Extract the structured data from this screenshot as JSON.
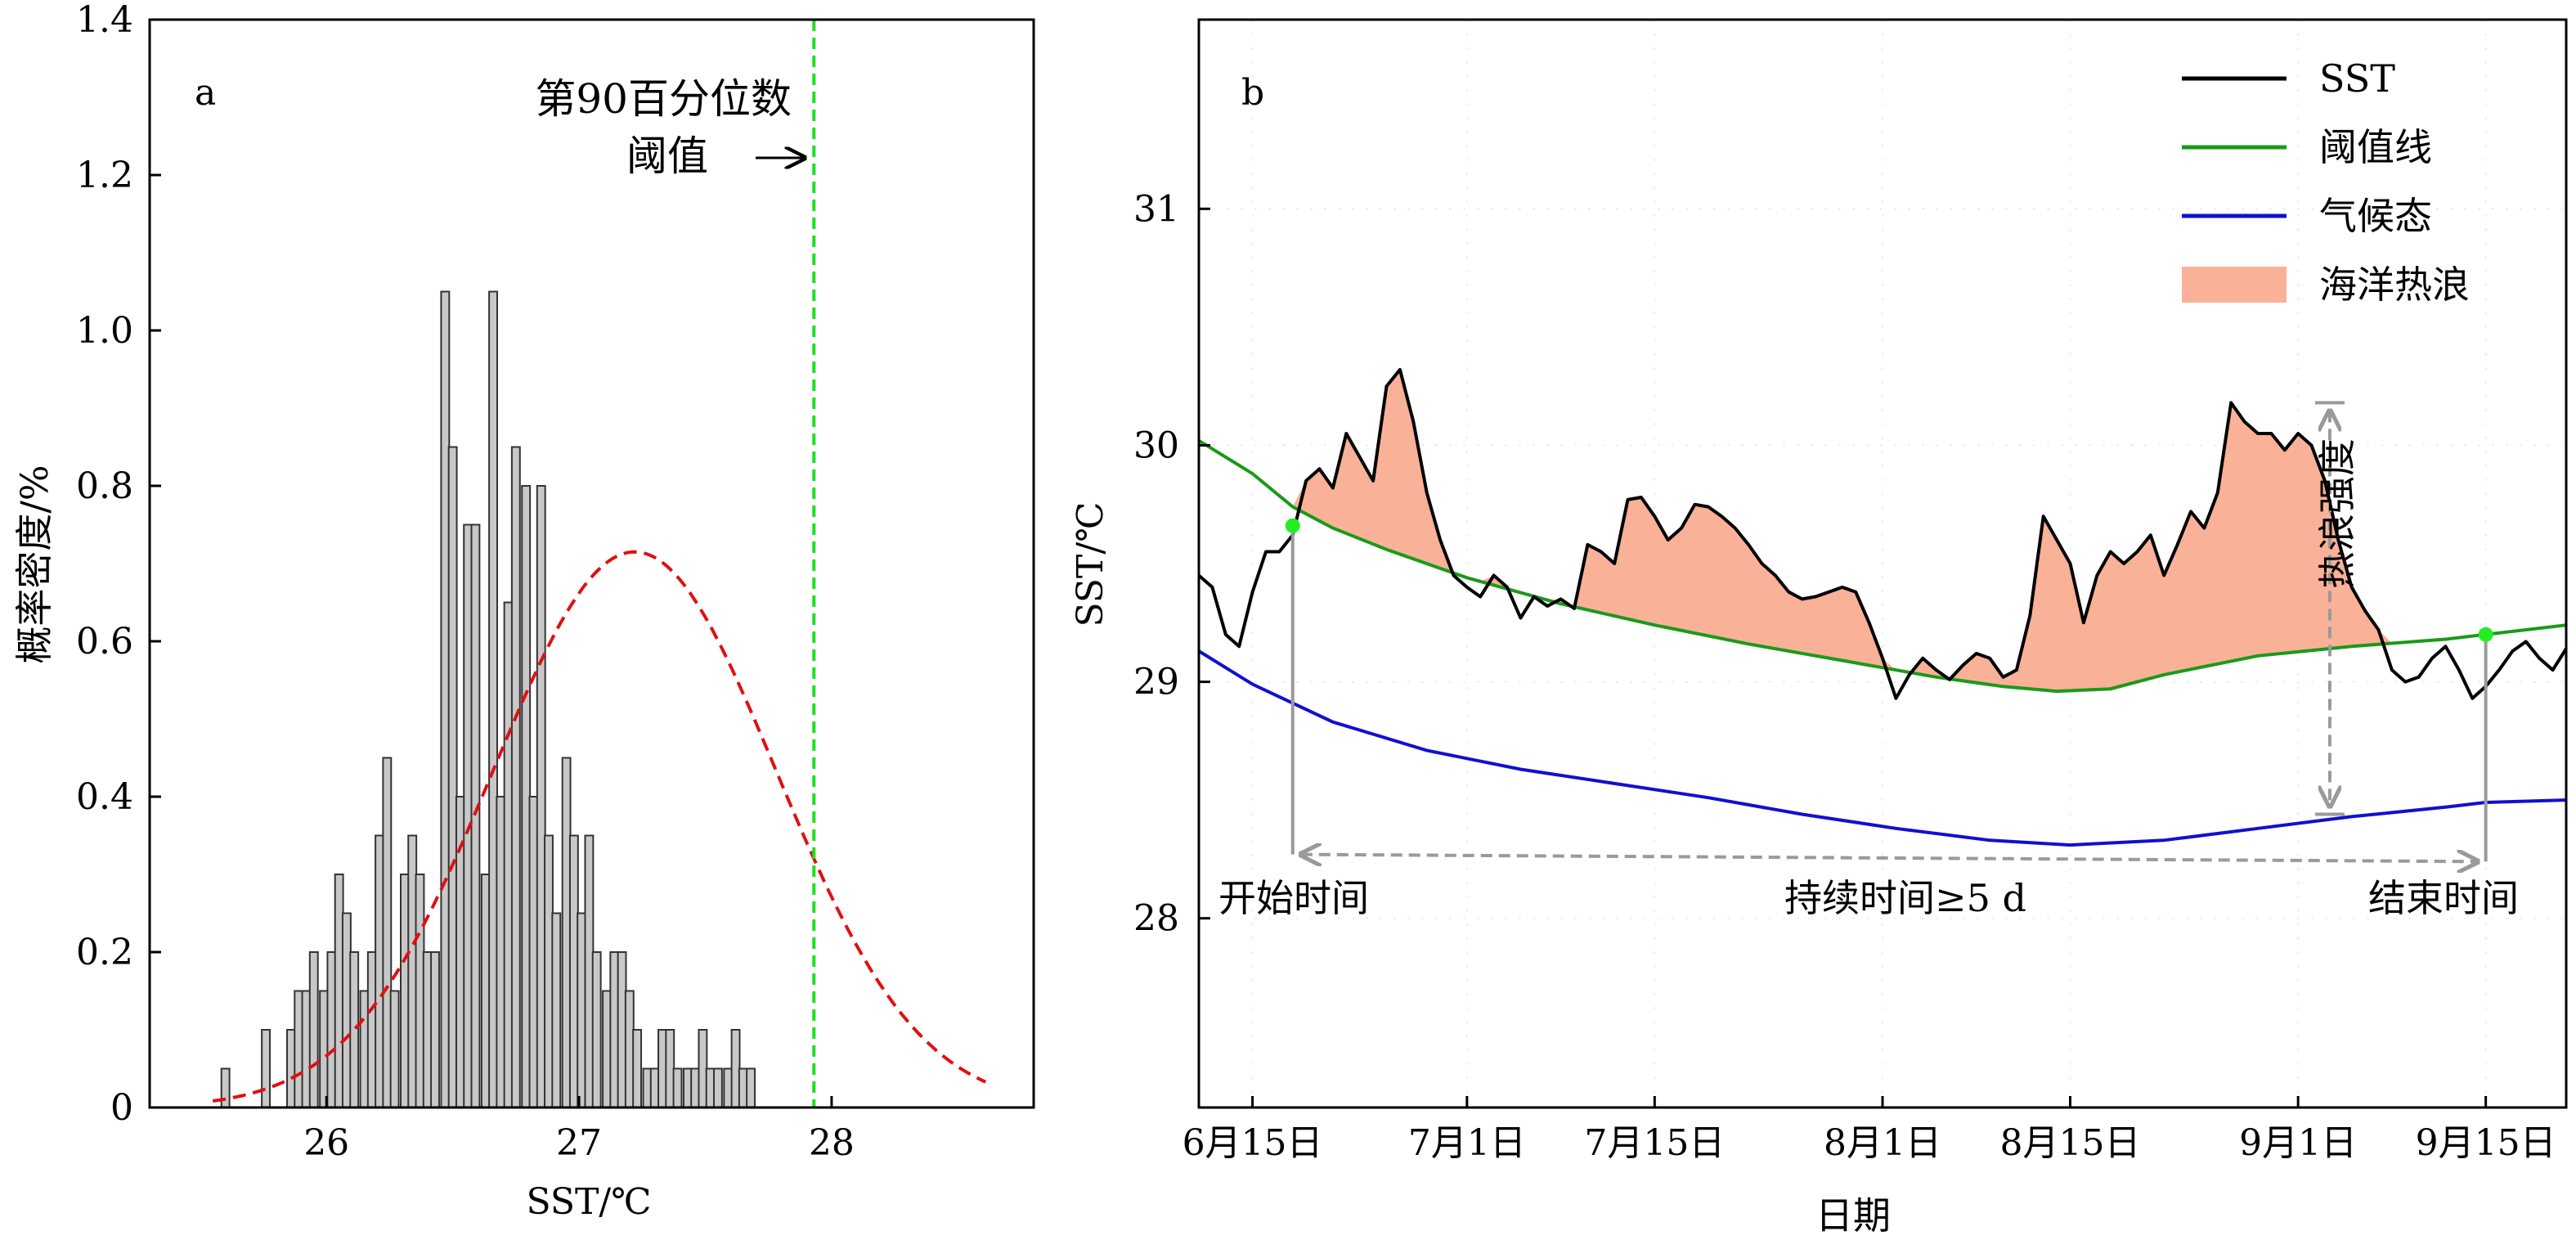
{
  "chart_data": [
    {
      "panel": "a",
      "type": "bar",
      "xlabel": "SST/℃",
      "ylabel": "概率密度/%",
      "xlim": [
        25.3,
        28.8
      ],
      "ylim": [
        0,
        1.4
      ],
      "x_ticks": [
        "26",
        "27",
        "28"
      ],
      "x_tick_values": [
        26,
        27,
        28
      ],
      "y_ticks": [
        "0",
        "0.2",
        "0.4",
        "0.6",
        "0.8",
        "1.0",
        "1.2",
        "1.4"
      ],
      "y_tick_values": [
        0,
        0.2,
        0.4,
        0.6,
        0.8,
        1.0,
        1.2,
        1.4
      ],
      "bin_width": 0.032,
      "bin_centers": [
        25.6,
        25.63,
        25.67,
        25.7,
        25.73,
        25.76,
        25.79,
        25.83,
        25.86,
        25.89,
        25.92,
        25.95,
        25.99,
        26.02,
        26.05,
        26.08,
        26.11,
        26.15,
        26.18,
        26.21,
        26.24,
        26.27,
        26.31,
        26.34,
        26.37,
        26.4,
        26.43,
        26.47,
        26.5,
        26.53,
        26.56,
        26.59,
        26.63,
        26.66,
        26.69,
        26.72,
        26.75,
        26.79,
        26.82,
        26.85,
        26.88,
        26.91,
        26.95,
        26.98,
        27.01,
        27.04,
        27.07,
        27.11,
        27.14,
        27.17,
        27.2,
        27.23,
        27.27,
        27.3,
        27.33,
        27.36,
        27.39,
        27.43,
        27.46,
        27.49,
        27.52,
        27.55,
        27.59,
        27.62,
        27.65,
        27.68,
        27.71,
        27.75,
        27.78,
        27.81,
        27.84,
        27.87,
        27.91,
        27.94,
        27.97,
        28.0,
        28.03,
        28.07,
        28.1,
        28.13,
        28.16,
        28.19,
        28.23,
        28.26,
        28.29,
        28.32,
        28.35,
        28.39,
        28.42,
        28.45,
        28.48,
        28.51,
        28.55,
        28.58,
        28.61,
        28.64
      ],
      "values": [
        0.05,
        0,
        0,
        0,
        0,
        0.1,
        0,
        0,
        0.1,
        0.15,
        0.15,
        0.2,
        0.15,
        0.2,
        0.3,
        0.25,
        0.2,
        0.15,
        0.2,
        0.35,
        0.45,
        0.15,
        0.3,
        0.35,
        0.3,
        0.2,
        0.2,
        1.05,
        0.85,
        0.4,
        0.75,
        0.75,
        0.3,
        1.05,
        0.4,
        0.65,
        0.85,
        0.8,
        0.4,
        0.8,
        0.35,
        0.25,
        0.45,
        0.35,
        0.25,
        0.35,
        0.2,
        0.15,
        0.2,
        0.2,
        0.15,
        0.1,
        0.05,
        0.05,
        0.1,
        0.1,
        0.05,
        0.05,
        0.05,
        0.1,
        0.05,
        0.05,
        0.05,
        0.1,
        0.05,
        0.05,
        0,
        0,
        0,
        0,
        0,
        0,
        0,
        0,
        0,
        0,
        0,
        0,
        0,
        0,
        0,
        0,
        0,
        0,
        0,
        0,
        0,
        0,
        0,
        0,
        0,
        0,
        0,
        0,
        0,
        0
      ],
      "normal_fit": {
        "mean": 27.22,
        "std": 0.56,
        "peak": 0.715,
        "color": "#e01010",
        "style": "dashed"
      },
      "threshold": {
        "x": 27.93,
        "color": "#22dd22",
        "style": "dashed"
      },
      "annotations": {
        "panel_label": "a",
        "threshold_label_line1": "第90百分位数",
        "threshold_label_line2": "阈值",
        "arrow": "→"
      },
      "bar_color": "#c8c8c8",
      "bar_edge_color": "#333333"
    },
    {
      "panel": "b",
      "type": "line",
      "xlabel": "日期",
      "ylabel": "SST/℃",
      "ylim": [
        27.2,
        31.8
      ],
      "xlim_days_label": "6月11日 – 9月21日",
      "x_ticks": [
        "6月15日",
        "7月1日",
        "7月15日",
        "8月1日",
        "8月15日",
        "9月1日",
        "9月15日"
      ],
      "x_tick_dates": [
        "06-15",
        "07-01",
        "07-15",
        "08-01",
        "08-15",
        "09-01",
        "09-15"
      ],
      "y_ticks": [
        "28",
        "29",
        "30",
        "31"
      ],
      "y_tick_values": [
        28,
        29,
        30,
        31
      ],
      "legend": {
        "position": "top-right",
        "entries": [
          {
            "name": "SST",
            "color": "#000000",
            "kind": "line"
          },
          {
            "name": "阈值线",
            "color": "#1a9a1a",
            "kind": "line"
          },
          {
            "name": "气候态",
            "color": "#1010d0",
            "kind": "line"
          },
          {
            "name": "海洋热浪",
            "color": "#f9b197",
            "kind": "patch"
          }
        ]
      },
      "series": [
        {
          "name": "SST",
          "color": "#000000",
          "dates": [
            "06-11",
            "06-12",
            "06-13",
            "06-14",
            "06-15",
            "06-16",
            "06-17",
            "06-18",
            "06-19",
            "06-20",
            "06-21",
            "06-22",
            "06-23",
            "06-24",
            "06-25",
            "06-26",
            "06-27",
            "06-28",
            "06-29",
            "06-30",
            "07-01",
            "07-02",
            "07-03",
            "07-04",
            "07-05",
            "07-06",
            "07-07",
            "07-08",
            "07-09",
            "07-10",
            "07-11",
            "07-12",
            "07-13",
            "07-14",
            "07-15",
            "07-16",
            "07-17",
            "07-18",
            "07-19",
            "07-20",
            "07-21",
            "07-22",
            "07-23",
            "07-24",
            "07-25",
            "07-26",
            "07-27",
            "07-28",
            "07-29",
            "07-30",
            "07-31",
            "08-01",
            "08-02",
            "08-03",
            "08-04",
            "08-05",
            "08-06",
            "08-07",
            "08-08",
            "08-09",
            "08-10",
            "08-11",
            "08-12",
            "08-13",
            "08-14",
            "08-15",
            "08-16",
            "08-17",
            "08-18",
            "08-19",
            "08-20",
            "08-21",
            "08-22",
            "08-23",
            "08-24",
            "08-25",
            "08-26",
            "08-27",
            "08-28",
            "08-29",
            "08-30",
            "08-31",
            "09-01",
            "09-02",
            "09-03",
            "09-04",
            "09-05",
            "09-06",
            "09-07",
            "09-08",
            "09-09",
            "09-10",
            "09-11",
            "09-12",
            "09-13",
            "09-14",
            "09-15",
            "09-16",
            "09-17",
            "09-18",
            "09-19",
            "09-20",
            "09-21"
          ],
          "values": [
            29.45,
            29.4,
            29.2,
            29.15,
            29.38,
            29.55,
            29.55,
            29.62,
            29.85,
            29.9,
            29.82,
            30.05,
            29.95,
            29.85,
            30.25,
            30.32,
            30.1,
            29.8,
            29.6,
            29.45,
            29.4,
            29.36,
            29.45,
            29.4,
            29.27,
            29.36,
            29.32,
            29.35,
            29.31,
            29.58,
            29.55,
            29.5,
            29.77,
            29.78,
            29.7,
            29.6,
            29.65,
            29.75,
            29.74,
            29.7,
            29.65,
            29.58,
            29.5,
            29.45,
            29.38,
            29.35,
            29.36,
            29.38,
            29.4,
            29.38,
            29.25,
            29.1,
            28.93,
            29.03,
            29.1,
            29.05,
            29.01,
            29.07,
            29.12,
            29.1,
            29.02,
            29.05,
            29.28,
            29.7,
            29.6,
            29.5,
            29.25,
            29.45,
            29.55,
            29.5,
            29.55,
            29.62,
            29.45,
            29.58,
            29.72,
            29.65,
            29.8,
            30.18,
            30.1,
            30.05,
            30.05,
            29.98,
            30.05,
            30.0,
            29.85,
            29.6,
            29.4,
            29.3,
            29.22,
            29.05,
            29.0,
            29.02,
            29.1,
            29.15,
            29.05,
            28.93,
            28.98,
            29.05,
            29.13,
            29.17,
            29.1,
            29.05,
            29.14
          ]
        },
        {
          "name": "阈值线",
          "color": "#1a9a1a",
          "dates": [
            "06-11",
            "06-15",
            "06-18",
            "06-21",
            "06-25",
            "07-01",
            "07-08",
            "07-15",
            "07-22",
            "07-29",
            "08-05",
            "08-10",
            "08-14",
            "08-18",
            "08-22",
            "08-29",
            "09-05",
            "09-12",
            "09-15",
            "09-21"
          ],
          "values": [
            30.02,
            29.88,
            29.74,
            29.65,
            29.56,
            29.44,
            29.33,
            29.24,
            29.16,
            29.09,
            29.02,
            28.98,
            28.96,
            28.97,
            29.03,
            29.11,
            29.15,
            29.18,
            29.2,
            29.24
          ]
        },
        {
          "name": "气候态",
          "color": "#1010d0",
          "dates": [
            "06-11",
            "06-15",
            "06-21",
            "06-28",
            "07-05",
            "07-12",
            "07-19",
            "07-26",
            "08-02",
            "08-09",
            "08-15",
            "08-22",
            "08-29",
            "09-05",
            "09-12",
            "09-15",
            "09-21"
          ],
          "values": [
            29.13,
            28.99,
            28.83,
            28.71,
            28.63,
            28.57,
            28.51,
            28.44,
            28.38,
            28.33,
            28.31,
            28.33,
            28.38,
            28.43,
            28.47,
            28.49,
            28.5
          ]
        }
      ],
      "heatwave": {
        "start": "06-18",
        "end": "09-15",
        "fill": "#f9b197"
      },
      "markers": [
        {
          "date": "06-18",
          "value": 29.66,
          "color": "#22ee22"
        },
        {
          "date": "09-15",
          "value": 29.2,
          "color": "#22ee22"
        }
      ],
      "annotations": {
        "panel_label": "b",
        "start_label": "开始时间",
        "end_label": "结束时间",
        "duration_label": "持续时间≥5 d",
        "intensity_label": "热浪强度"
      }
    }
  ]
}
